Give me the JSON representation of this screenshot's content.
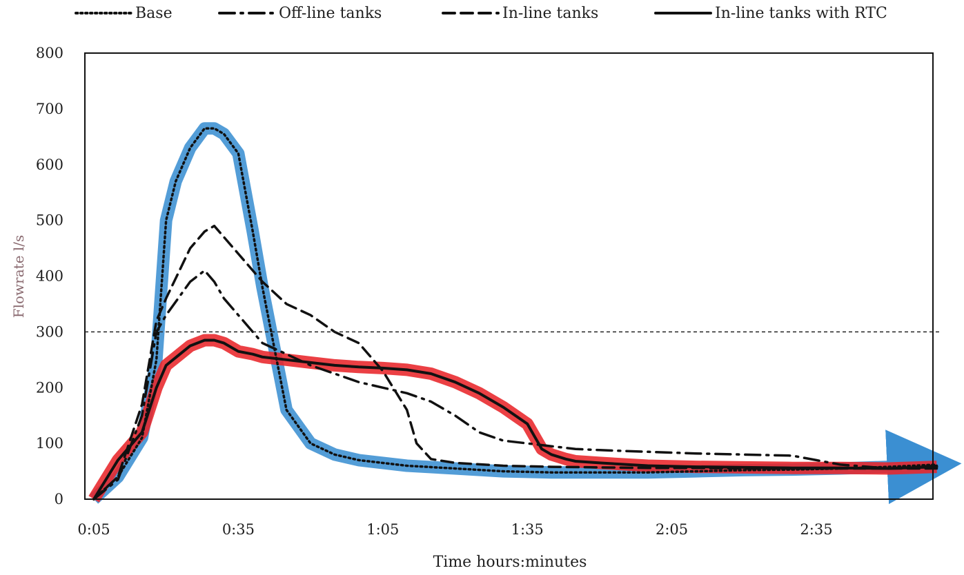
{
  "chart_data": {
    "type": "line",
    "title": "",
    "xlabel": "Time hours:minutes",
    "ylabel": "Flowrate l/s",
    "x_unit": "minutes",
    "xlim": [
      5,
      182
    ],
    "ylim": [
      0,
      800
    ],
    "x_ticks": [
      {
        "x": 5,
        "label": "0:05"
      },
      {
        "x": 35,
        "label": "0:35"
      },
      {
        "x": 65,
        "label": "1:05"
      },
      {
        "x": 95,
        "label": "1:35"
      },
      {
        "x": 125,
        "label": "2:05"
      },
      {
        "x": 155,
        "label": "2:35"
      }
    ],
    "y_ticks": [
      0,
      100,
      200,
      300,
      400,
      500,
      600,
      700,
      800
    ],
    "grid": false,
    "legend_position": "top",
    "reference_line": {
      "y": 300,
      "style": "dotted"
    },
    "series": [
      {
        "name": "Base",
        "line_style": "dotted",
        "x": [
          5,
          10,
          15,
          18,
          20,
          22,
          25,
          28,
          30,
          32,
          35,
          38,
          40,
          45,
          50,
          55,
          60,
          70,
          80,
          90,
          100,
          110,
          120,
          130,
          140,
          150,
          160,
          170,
          180
        ],
        "y": [
          0,
          40,
          110,
          250,
          500,
          570,
          630,
          665,
          665,
          655,
          620,
          480,
          380,
          160,
          100,
          80,
          70,
          60,
          55,
          50,
          48,
          48,
          48,
          50,
          52,
          53,
          55,
          58,
          62
        ]
      },
      {
        "name": "Off-line tanks",
        "line_style": "dash-dot",
        "x": [
          5,
          10,
          15,
          18,
          20,
          25,
          28,
          30,
          32,
          35,
          40,
          45,
          50,
          55,
          60,
          65,
          70,
          75,
          80,
          85,
          90,
          95,
          100,
          105,
          110,
          120,
          130,
          140,
          150,
          155,
          160,
          170,
          180
        ],
        "y": [
          0,
          35,
          150,
          300,
          330,
          390,
          410,
          390,
          360,
          330,
          280,
          260,
          240,
          225,
          210,
          200,
          190,
          175,
          150,
          120,
          105,
          100,
          95,
          90,
          88,
          85,
          82,
          80,
          78,
          70,
          62,
          55,
          60
        ]
      },
      {
        "name": "In-line tanks",
        "line_style": "dashed",
        "x": [
          5,
          10,
          15,
          18,
          20,
          25,
          28,
          30,
          32,
          35,
          40,
          45,
          50,
          55,
          60,
          63,
          65,
          70,
          72,
          75,
          80,
          90,
          100,
          110,
          120,
          130,
          140,
          150,
          160,
          170,
          180
        ],
        "y": [
          0,
          40,
          170,
          320,
          360,
          450,
          480,
          490,
          470,
          440,
          390,
          350,
          330,
          300,
          280,
          250,
          230,
          160,
          100,
          72,
          65,
          60,
          58,
          57,
          56,
          56,
          55,
          55,
          55,
          55,
          55
        ]
      },
      {
        "name": "In-line tanks with RTC",
        "line_style": "solid",
        "x": [
          5,
          10,
          15,
          18,
          20,
          25,
          28,
          30,
          32,
          35,
          38,
          40,
          45,
          50,
          55,
          60,
          65,
          70,
          75,
          80,
          85,
          90,
          95,
          98,
          100,
          103,
          105,
          110,
          120,
          130,
          140,
          150,
          160,
          170,
          180
        ],
        "y": [
          0,
          70,
          120,
          200,
          240,
          275,
          285,
          285,
          280,
          265,
          260,
          255,
          250,
          245,
          240,
          237,
          235,
          232,
          225,
          210,
          190,
          165,
          135,
          90,
          80,
          72,
          68,
          65,
          60,
          58,
          57,
          56,
          56,
          55,
          58
        ]
      }
    ],
    "highlights": [
      {
        "series": "Base",
        "color": "#3b8fd2"
      },
      {
        "series": "In-line tanks with RTC",
        "color": "#e8262a"
      }
    ]
  }
}
